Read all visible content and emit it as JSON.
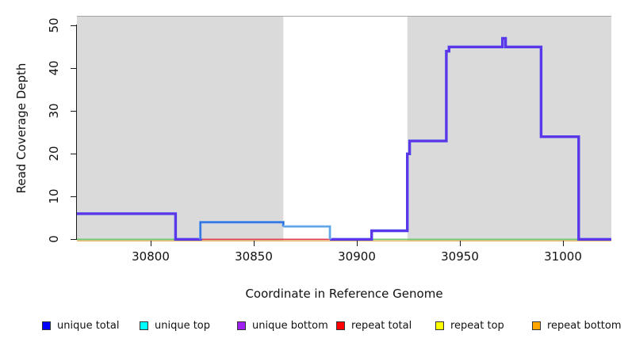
{
  "chart_data": {
    "type": "line",
    "subtype": "step-coverage-plot",
    "title": "",
    "xlabel": "Coordinate in Reference Genome",
    "ylabel": "Read Coverage Depth",
    "xlim": [
      30764,
      31023
    ],
    "ylim": [
      0,
      52
    ],
    "x_ticks": [
      30800,
      30850,
      30900,
      30950,
      31000
    ],
    "y_ticks": [
      0,
      10,
      20,
      30,
      40,
      50
    ],
    "grid": false,
    "plot_background": "#dadada",
    "highlight_region": {
      "x1": 30864.4,
      "x2": 30924.5,
      "fill": "#ffffff"
    },
    "series": [
      {
        "name": "unique total",
        "color": "#0000FF",
        "steps": [
          [
            30764,
            6
          ],
          [
            30812,
            0
          ],
          [
            30824,
            4
          ],
          [
            30865,
            3
          ],
          [
            30887,
            0
          ],
          [
            30907,
            2
          ],
          [
            30924.5,
            20
          ],
          [
            30925.6,
            23
          ],
          [
            30943.4,
            44
          ],
          [
            30944.7,
            45
          ],
          [
            30970.6,
            47
          ],
          [
            30972.1,
            45
          ],
          [
            30989.3,
            24
          ],
          [
            31007.5,
            0
          ],
          [
            31023,
            0
          ]
        ]
      },
      {
        "name": "unique top",
        "color": "#00FFFF",
        "steps": [
          [
            30764,
            0
          ],
          [
            30824,
            4
          ],
          [
            30865,
            3
          ],
          [
            30887,
            0
          ],
          [
            31023,
            0
          ]
        ]
      },
      {
        "name": "unique bottom",
        "color": "#A020F0",
        "steps": [
          [
            30764,
            6
          ],
          [
            30812,
            0
          ],
          [
            30907,
            2
          ],
          [
            30924.5,
            20
          ],
          [
            30925.6,
            23
          ],
          [
            30943.4,
            44
          ],
          [
            30944.7,
            45
          ],
          [
            30970.6,
            47
          ],
          [
            30972.1,
            45
          ],
          [
            30989.3,
            24
          ],
          [
            31007.5,
            0
          ],
          [
            31023,
            0
          ]
        ]
      },
      {
        "name": "repeat total",
        "color": "#FF0000",
        "steps": [
          [
            30764,
            0
          ],
          [
            31023,
            0
          ]
        ]
      },
      {
        "name": "repeat top",
        "color": "#FFFF00",
        "steps": [
          [
            30764,
            0
          ],
          [
            31023,
            0
          ]
        ]
      },
      {
        "name": "repeat bottom",
        "color": "#FFA500",
        "steps": [
          [
            30764,
            0
          ],
          [
            31023,
            0
          ]
        ]
      }
    ],
    "render": {
      "polylines": [
        {
          "color": "#E2A33D",
          "width": 1.2,
          "pts": [
            [
              30764.4,
              -0.35
            ],
            [
              31023.3,
              -0.35
            ]
          ]
        },
        {
          "color": "#DE4152",
          "width": 1.6,
          "pts": [
            [
              30824.2,
              0
            ],
            [
              30887,
              0
            ]
          ]
        },
        {
          "color": "#6BCB6B",
          "width": 1.6,
          "pts": [
            [
              30764.4,
              0
            ],
            [
              30813,
              0
            ]
          ]
        },
        {
          "color": "#6BCB6B",
          "width": 1.6,
          "pts": [
            [
              30906,
              0
            ],
            [
              31007,
              0
            ]
          ]
        },
        {
          "color": "#6733E2",
          "width": 1.8,
          "under": "#4040F5",
          "pts": [
            [
              30764.4,
              6
            ],
            [
              30812.2,
              6
            ],
            [
              30812.2,
              0
            ],
            [
              30825,
              0
            ]
          ]
        },
        {
          "color": "#6733E2",
          "width": 1.8,
          "under": "#4040F5",
          "pts": [
            [
              30887,
              0
            ],
            [
              30907.2,
              0
            ],
            [
              30907.2,
              2
            ],
            [
              30924.5,
              2
            ],
            [
              30924.5,
              20
            ],
            [
              30925.6,
              20
            ],
            [
              30925.6,
              23
            ],
            [
              30943.4,
              23
            ],
            [
              30943.4,
              44
            ],
            [
              30944.7,
              44
            ],
            [
              30944.7,
              45
            ],
            [
              30970.6,
              45
            ],
            [
              30970.6,
              47
            ],
            [
              30972.1,
              47
            ],
            [
              30972.1,
              45
            ],
            [
              30989.3,
              45
            ],
            [
              30989.3,
              24
            ],
            [
              31007.5,
              24
            ],
            [
              31007.5,
              0
            ],
            [
              31023.3,
              0
            ]
          ]
        },
        {
          "color": "#2A69DE",
          "width": 1.8,
          "under": "#7AB4EE",
          "pts": [
            [
              30824.2,
              0
            ],
            [
              30824.2,
              4
            ],
            [
              30864.4,
              4
            ],
            [
              30864.4,
              3
            ]
          ]
        },
        {
          "color": "#58A0E8",
          "width": 1.8,
          "under": "#A8D2F2",
          "pts": [
            [
              30864.4,
              3
            ],
            [
              30887,
              3
            ],
            [
              30887,
              0
            ]
          ]
        }
      ]
    },
    "legend": {
      "position": "bottom",
      "items": [
        {
          "label": "unique total",
          "color": "#0000FF"
        },
        {
          "label": "unique top",
          "color": "#00FFFF"
        },
        {
          "label": "unique bottom",
          "color": "#A020F0"
        },
        {
          "label": "repeat total",
          "color": "#FF0000"
        },
        {
          "label": "repeat top",
          "color": "#FFFF00"
        },
        {
          "label": "repeat bottom",
          "color": "#FFA500"
        }
      ]
    }
  }
}
